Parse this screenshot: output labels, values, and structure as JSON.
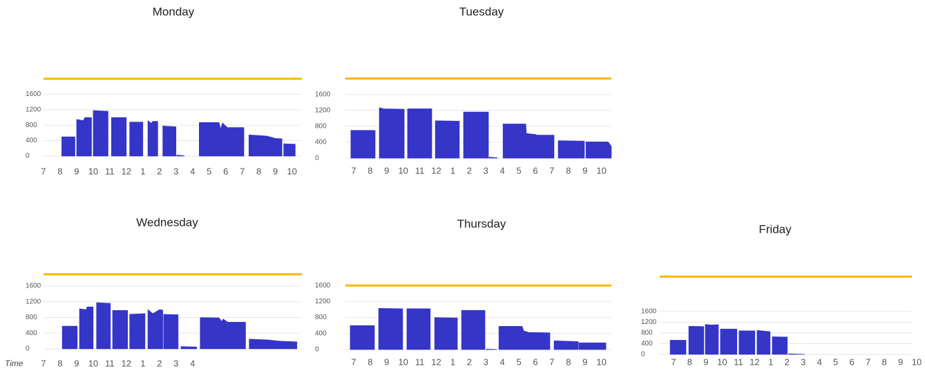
{
  "chart_data": [
    {
      "type": "area",
      "title": "Monday",
      "color": "#3535c8",
      "grid": true,
      "reference_line": {
        "value": 2000,
        "color": "#ffb400"
      },
      "xlim": [
        7,
        22.6
      ],
      "ylim": [
        0,
        2650
      ],
      "yticks": [
        0,
        400,
        800,
        1200,
        1600
      ],
      "xticks": [
        7,
        8,
        9,
        10,
        11,
        12,
        {
          "value": 13,
          "label": "1"
        },
        {
          "value": 14,
          "label": "2"
        },
        {
          "value": 15,
          "label": "3"
        },
        {
          "value": 16,
          "label": "4"
        },
        {
          "value": 17,
          "label": "5"
        },
        {
          "value": 18,
          "label": "6"
        },
        {
          "value": 19,
          "label": "7"
        },
        {
          "value": 20,
          "label": "8"
        },
        {
          "value": 21,
          "label": "9"
        },
        {
          "value": 22,
          "label": "10"
        }
      ],
      "x": [
        8.1,
        8.9,
        8.95,
        9.0,
        9.4,
        9.5,
        9.9,
        9.95,
        10.0,
        10.9,
        11.0,
        11.1,
        12.0,
        12.1,
        12.2,
        13.0,
        13.15,
        13.3,
        13.5,
        13.6,
        13.9,
        14.05,
        14.2,
        15.0,
        15.02,
        15.05,
        15.5,
        16.0,
        16.4,
        17.6,
        17.7,
        17.8,
        18.1,
        19.1,
        19.25,
        19.4,
        20.5,
        21.0,
        21.4,
        21.45,
        21.5,
        22.2
      ],
      "values": [
        500,
        500,
        null,
        950,
        920,
        1000,
        1000,
        null,
        1180,
        1160,
        null,
        1000,
        1000,
        null,
        880,
        880,
        null,
        920,
        850,
        900,
        900,
        null,
        780,
        760,
        null,
        30,
        10,
        null,
        870,
        870,
        700,
        860,
        740,
        740,
        null,
        550,
        520,
        460,
        450,
        null,
        320,
        310
      ]
    },
    {
      "type": "area",
      "title": "Tuesday",
      "color": "#3535c8",
      "grid": true,
      "reference_line": {
        "value": 2000,
        "color": "#ffb400"
      },
      "xlim": [
        6.5,
        22.6
      ],
      "ylim": [
        0,
        2600
      ],
      "yticks": [
        0,
        400,
        800,
        1200,
        1600
      ],
      "xticks": [
        7,
        8,
        9,
        10,
        11,
        12,
        {
          "value": 13,
          "label": "1"
        },
        {
          "value": 14,
          "label": "2"
        },
        {
          "value": 15,
          "label": "3"
        },
        {
          "value": 16,
          "label": "4"
        },
        {
          "value": 17,
          "label": "5"
        },
        {
          "value": 18,
          "label": "6"
        },
        {
          "value": 19,
          "label": "7"
        },
        {
          "value": 20,
          "label": "8"
        },
        {
          "value": 21,
          "label": "9"
        },
        {
          "value": 22,
          "label": "10"
        }
      ],
      "x": [
        6.83,
        8.3,
        8.42,
        8.55,
        8.8,
        10.06,
        10.16,
        10.26,
        11.73,
        11.84,
        11.94,
        13.4,
        13.52,
        13.65,
        15.16,
        15.18,
        15.2,
        15.7,
        15.9,
        16.04,
        17.42,
        17.46,
        17.97,
        18.1,
        19.13,
        19.25,
        19.38,
        20.97,
        21.0,
        21.06,
        22.4,
        22.6
      ],
      "values": [
        700,
        700,
        null,
        1270,
        1240,
        1230,
        null,
        1240,
        1240,
        null,
        940,
        930,
        null,
        1160,
        1160,
        null,
        30,
        10,
        null,
        860,
        860,
        620,
        600,
        580,
        580,
        null,
        440,
        430,
        null,
        410,
        410,
        300
      ]
    },
    {
      "type": "area",
      "title": "Wednesday",
      "x_label": "Time",
      "color": "#3535c8",
      "grid": true,
      "reference_line": {
        "value": 1900,
        "color": "#ffb400"
      },
      "xlim": [
        7,
        22.6
      ],
      "ylim": [
        0,
        2550
      ],
      "yticks": [
        0,
        400,
        800,
        1200,
        1600
      ],
      "xticks": [
        7,
        8,
        9,
        10,
        11,
        12,
        {
          "value": 13,
          "label": "1"
        },
        {
          "value": 14,
          "label": "2"
        },
        {
          "value": 15,
          "label": "3"
        },
        {
          "value": 16,
          "label": "4"
        }
      ],
      "x": [
        8.13,
        9.04,
        9.1,
        9.17,
        9.58,
        9.63,
        10.0,
        10.1,
        10.2,
        11.04,
        11.1,
        11.17,
        12.08,
        12.14,
        12.2,
        13.13,
        13.2,
        13.3,
        13.6,
        14.0,
        14.2,
        14.22,
        14.25,
        15.13,
        15.2,
        15.3,
        16.25,
        16.35,
        16.46,
        17.6,
        17.75,
        17.85,
        18.13,
        19.2,
        19.3,
        19.42,
        20.54,
        21.25,
        22.3
      ],
      "values": [
        580,
        580,
        null,
        1020,
        1000,
        1070,
        1070,
        null,
        1180,
        1160,
        null,
        980,
        980,
        null,
        880,
        900,
        null,
        1000,
        900,
        1000,
        990,
        null,
        880,
        870,
        null,
        60,
        50,
        null,
        800,
        790,
        700,
        760,
        680,
        680,
        null,
        250,
        230,
        200,
        180
      ]
    },
    {
      "type": "area",
      "title": "Thursday",
      "color": "#3535c8",
      "grid": true,
      "reference_line": {
        "value": 1600,
        "color": "#ffb400"
      },
      "xlim": [
        6.5,
        22.6
      ],
      "ylim": [
        0,
        2000
      ],
      "yticks": [
        0,
        400,
        800,
        1200,
        1600
      ],
      "xticks": [
        7,
        8,
        9,
        10,
        11,
        12,
        {
          "value": 13,
          "label": "1"
        },
        {
          "value": 14,
          "label": "2"
        },
        {
          "value": 15,
          "label": "3"
        },
        {
          "value": 16,
          "label": "4"
        },
        {
          "value": 17,
          "label": "5"
        },
        {
          "value": 18,
          "label": "6"
        },
        {
          "value": 19,
          "label": "7"
        },
        {
          "value": 20,
          "label": "8"
        },
        {
          "value": 21,
          "label": "9"
        },
        {
          "value": 22,
          "label": "10"
        }
      ],
      "x": [
        6.79,
        8.26,
        8.4,
        8.51,
        9.97,
        10.1,
        10.22,
        11.64,
        11.77,
        11.9,
        13.28,
        13.4,
        13.53,
        14.95,
        15.0,
        15.03,
        15.66,
        15.72,
        15.79,
        17.2,
        17.29,
        17.59,
        18.88,
        19.0,
        19.13,
        20.6,
        20.62,
        20.64,
        22.27
      ],
      "values": [
        600,
        600,
        null,
        1030,
        1020,
        null,
        1020,
        1020,
        null,
        800,
        790,
        null,
        980,
        980,
        null,
        15,
        5,
        null,
        580,
        580,
        470,
        430,
        420,
        null,
        220,
        200,
        null,
        170,
        170
      ]
    },
    {
      "type": "area",
      "title": "Friday",
      "color": "#3535c8",
      "grid": true,
      "reference_line": {
        "value": 2900,
        "color": "#ffb400"
      },
      "xlim": [
        6.15,
        21.7
      ],
      "ylim": [
        0,
        3400
      ],
      "yticks": [
        0,
        400,
        800,
        1200,
        1600
      ],
      "xticks": [
        7,
        8,
        9,
        10,
        11,
        12,
        {
          "value": 13,
          "label": "1"
        },
        {
          "value": 14,
          "label": "2"
        },
        {
          "value": 15,
          "label": "3"
        },
        {
          "value": 16,
          "label": "4"
        },
        {
          "value": 17,
          "label": "5"
        },
        {
          "value": 18,
          "label": "6"
        },
        {
          "value": 19,
          "label": "7"
        },
        {
          "value": 20,
          "label": "8"
        },
        {
          "value": 21,
          "label": "9"
        },
        {
          "value": 22,
          "label": "10"
        }
      ],
      "x": [
        6.79,
        7.77,
        7.85,
        7.94,
        8.87,
        8.9,
        8.96,
        9.3,
        9.77,
        9.83,
        9.89,
        10.91,
        11.0,
        11.04,
        12.02,
        12.1,
        12.15,
        12.96,
        13.0,
        13.09,
        14.02,
        14.06,
        14.1,
        15.09
      ],
      "values": [
        530,
        530,
        null,
        1050,
        1040,
        null,
        1120,
        1100,
        1110,
        null,
        950,
        950,
        null,
        880,
        880,
        null,
        900,
        850,
        null,
        660,
        650,
        null,
        25,
        5
      ]
    }
  ]
}
